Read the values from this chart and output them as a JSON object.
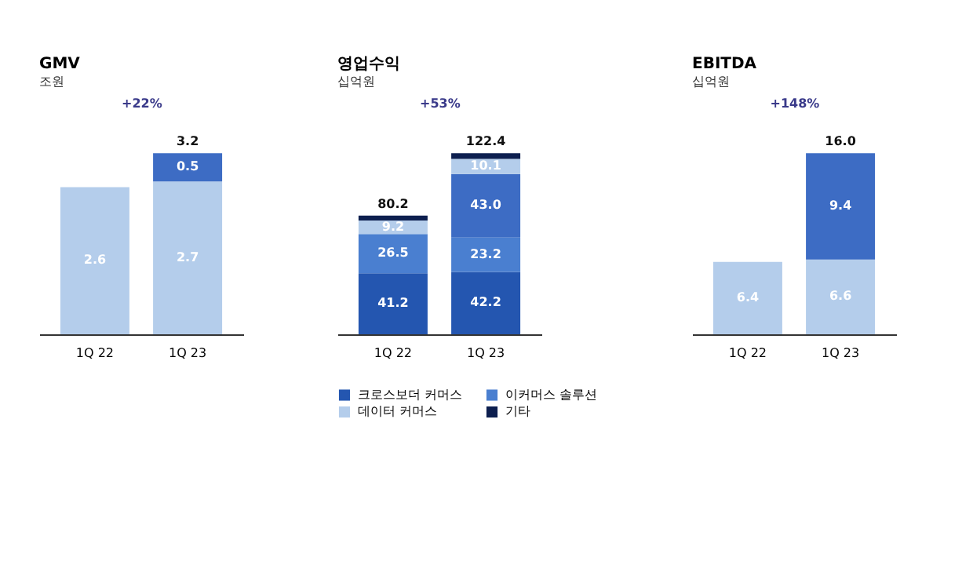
{
  "chart_data": [
    {
      "type": "bar",
      "title": "GMV",
      "subtitle": "조원",
      "stacked": true,
      "tick_labels": "x",
      "categories": [
        "1Q 22",
        "1Q 23"
      ],
      "series": [
        {
          "color": "#b4cdeb",
          "values": [
            2.6,
            2.7
          ],
          "value_labels": [
            "2.6",
            "2.7"
          ]
        },
        {
          "color": "#3d6cc4",
          "values": [
            null,
            0.5
          ],
          "value_labels": [
            null,
            "0.5"
          ]
        }
      ],
      "totals": [
        null,
        "3.2"
      ],
      "annotations": [
        "+22%"
      ]
    },
    {
      "type": "bar",
      "title": "영업수익",
      "subtitle": "십억원",
      "stacked": true,
      "tick_labels": "x",
      "legend": "bottom",
      "categories": [
        "1Q 22",
        "1Q 23"
      ],
      "series": [
        {
          "name": "크로스보더 커머스",
          "color": "#2456b0",
          "values": [
            41.2,
            42.2
          ],
          "value_labels": [
            "41.2",
            "42.2"
          ]
        },
        {
          "name": "이커머스 솔루션",
          "color": "#4a7fd0",
          "values": [
            26.5,
            23.2
          ],
          "value_labels": [
            "26.5",
            "23.2"
          ]
        },
        {
          "color": "#3d6cc4",
          "values": [
            null,
            43.0
          ],
          "value_labels": [
            null,
            "43.0"
          ]
        },
        {
          "name": "데이터 커머스",
          "color": "#b4cdeb",
          "values": [
            9.2,
            10.1
          ],
          "value_labels": [
            "9.2",
            "10.1"
          ]
        },
        {
          "name": "기타",
          "color": "#0d1f4f",
          "values": [
            3.3,
            3.9
          ],
          "value_labels": [
            null,
            null
          ]
        }
      ],
      "totals": [
        "80.2",
        "122.4"
      ],
      "annotations": [
        "+53%"
      ]
    },
    {
      "type": "bar",
      "title": "EBITDA",
      "subtitle": "십억원",
      "stacked": true,
      "tick_labels": "x",
      "categories": [
        "1Q 22",
        "1Q 23"
      ],
      "series": [
        {
          "color": "#b4cdeb",
          "values": [
            6.4,
            6.6
          ],
          "value_labels": [
            "6.4",
            "6.6"
          ]
        },
        {
          "color": "#3d6cc4",
          "values": [
            null,
            9.4
          ],
          "value_labels": [
            null,
            "9.4"
          ]
        }
      ],
      "totals": [
        null,
        "16.0"
      ],
      "annotations": [
        "+148%"
      ]
    }
  ]
}
